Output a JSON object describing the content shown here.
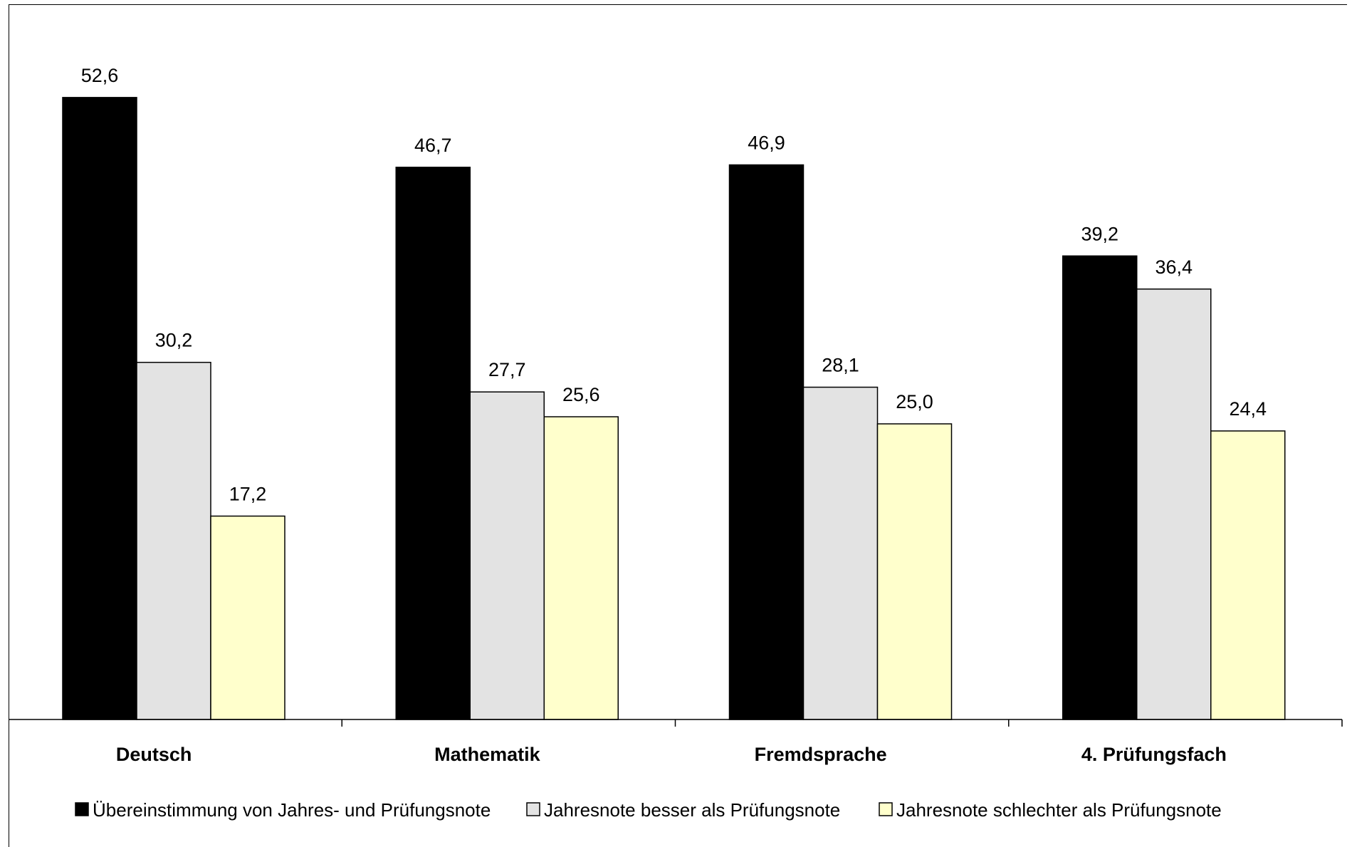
{
  "chart_data": {
    "type": "bar",
    "title": "",
    "xlabel": "",
    "ylabel": "",
    "categories": [
      "Deutsch",
      "Mathematik",
      "Fremdsprache",
      "4. Prüfungsfach"
    ],
    "series": [
      {
        "name": "Übereinstimmung von Jahres- und Prüfungsnote",
        "color": "#000000",
        "values": [
          52.6,
          46.7,
          46.9,
          39.2
        ],
        "labels": [
          "52,6",
          "46,7",
          "46,9",
          "39,2"
        ]
      },
      {
        "name": "Jahresnote besser als Prüfungsnote",
        "color": "#e3e3e3",
        "values": [
          30.2,
          27.7,
          28.1,
          36.4
        ],
        "labels": [
          "30,2",
          "27,7",
          "28,1",
          "36,4"
        ]
      },
      {
        "name": "Jahresnote schlechter als Prüfungsnote",
        "color": "#ffffcc",
        "values": [
          17.2,
          25.6,
          25.0,
          24.4
        ],
        "labels": [
          "17,2",
          "25,6",
          "25,0",
          "24,4"
        ]
      }
    ],
    "ylim": [
      0,
      60
    ],
    "grid": false,
    "legend_position": "bottom"
  }
}
